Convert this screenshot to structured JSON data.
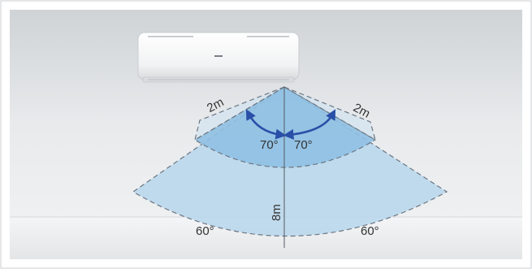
{
  "diagram": {
    "labels": {
      "near_distance_left": "2m",
      "near_distance_right": "2m",
      "inner_angle_left": "70°",
      "inner_angle_right": "70°",
      "outer_angle_left": "60°",
      "outer_angle_right": "60°",
      "vertical_distance": "8m"
    },
    "colors": {
      "wall": "#e3e5e7",
      "floor": "#f1f2f3",
      "fan_outer": "#bdd9ec",
      "fan_inner": "#8fc0e3",
      "arrow": "#2a4fa8",
      "dashed_outline": "#6b7682"
    }
  }
}
